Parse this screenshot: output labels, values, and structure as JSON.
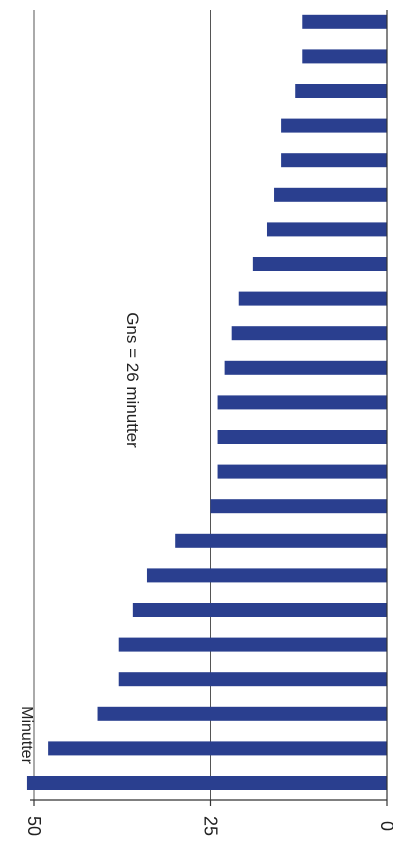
{
  "chart_data": {
    "type": "bar",
    "orientation": "horizontal",
    "ylabel": "Minutter",
    "annotation": "Gns = 26 minutter",
    "xlim": [
      0,
      50
    ],
    "ticks": [
      "0",
      "25",
      "50"
    ],
    "gridlines": [
      25,
      50
    ],
    "values": [
      51,
      48,
      41,
      38,
      38,
      36,
      34,
      30,
      25,
      24,
      24,
      24,
      23,
      22,
      21,
      19,
      17,
      16,
      15,
      15,
      13,
      12,
      12,
      12
    ],
    "highlight_value_label": "12",
    "colors": {
      "bar": "#2a3f8f",
      "highlight": "#9fb84a",
      "axis": "#333333",
      "grid": "#555555",
      "text": "#222222"
    }
  }
}
